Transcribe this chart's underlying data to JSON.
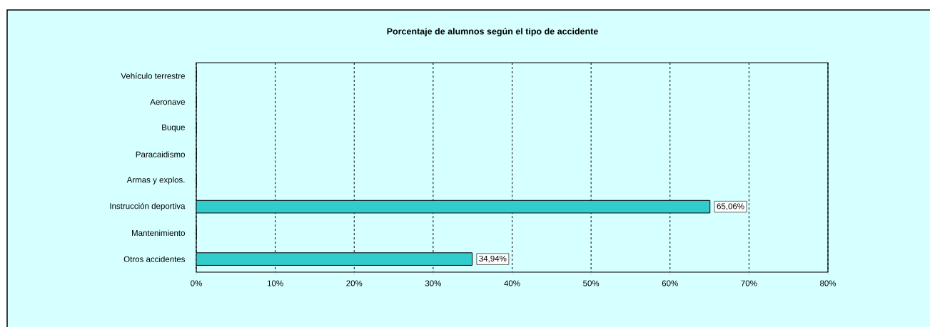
{
  "chart_data": {
    "type": "bar",
    "orientation": "horizontal",
    "title": "Porcentaje de alumnos según el tipo de accidente",
    "categories": [
      "Vehículo terrestre",
      "Aeronave",
      "Buque",
      "Paracaidismo",
      "Armas y explos.",
      "Instrucción deportiva",
      "Mantenimiento",
      "Otros accidentes"
    ],
    "values": [
      0,
      0,
      0,
      0,
      0,
      65.06,
      0,
      34.94
    ],
    "value_labels": [
      null,
      null,
      null,
      null,
      null,
      "65,06%",
      null,
      "34,94%"
    ],
    "color": "#33cccc",
    "xlim": [
      0,
      80
    ],
    "xticks": [
      {
        "value": 0,
        "label": "0%"
      },
      {
        "value": 10,
        "label": "10%"
      },
      {
        "value": 20,
        "label": "20%"
      },
      {
        "value": 30,
        "label": "30%"
      },
      {
        "value": 40,
        "label": "40%"
      },
      {
        "value": 50,
        "label": "50%"
      },
      {
        "value": 60,
        "label": "60%"
      },
      {
        "value": 70,
        "label": "70%"
      },
      {
        "value": 80,
        "label": "80%"
      }
    ],
    "grid": "x"
  }
}
